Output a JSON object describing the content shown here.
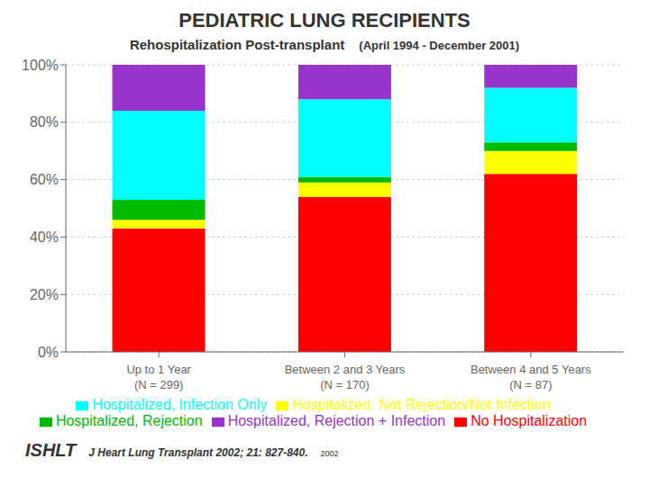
{
  "chart_data": {
    "type": "bar",
    "stacked": true,
    "title": "PEDIATRIC LUNG RECIPIENTS",
    "subtitle": "Rehospitalization Post-transplant",
    "annotations": [
      "(April 1994 - December 2001)",
      "ISHLT",
      "J Heart Lung Transplant 2002; 21: 827-840.",
      "2002"
    ],
    "categories": [
      "Up to 1 Year\n(N = 299)",
      "Between 2 and 3 Years\n(N = 170)",
      "Between 4 and 5 Years\n(N = 87)"
    ],
    "series": [
      {
        "name": "No Hospitalization",
        "color": "#FF0000",
        "values": [
          43,
          54,
          62
        ]
      },
      {
        "name": "Hospitalized, Not Rejection/Not Infection",
        "color": "#FFFF00",
        "values": [
          3,
          5,
          8
        ]
      },
      {
        "name": "Hospitalized, Rejection",
        "color": "#00BB00",
        "values": [
          7,
          2,
          3
        ]
      },
      {
        "name": "Hospitalized, Infection Only",
        "color": "#00FFFF",
        "values": [
          31,
          27,
          19
        ]
      },
      {
        "name": "Hospitalized, Rejection + Infection",
        "color": "#9933CC",
        "values": [
          16,
          12,
          8
        ]
      }
    ],
    "ylim": [
      0,
      100
    ],
    "yticks": [
      {
        "value": 0,
        "label": "0%"
      },
      {
        "value": 20,
        "label": "20%"
      },
      {
        "value": 40,
        "label": "40%"
      },
      {
        "value": 60,
        "label": "60%"
      },
      {
        "value": 80,
        "label": "80%"
      },
      {
        "value": 100,
        "label": "100%"
      }
    ],
    "grid": true,
    "legend": "bottom"
  }
}
